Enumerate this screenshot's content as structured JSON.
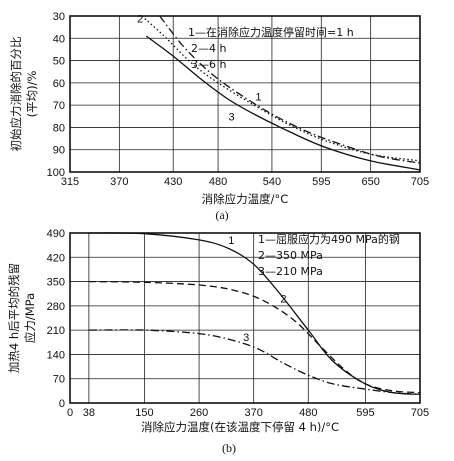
{
  "chart_data": [
    {
      "type": "line",
      "caption": "(a)",
      "xlabel": "消除应力温度/°C",
      "ylabel_lines": [
        "初始应力消除的百分比",
        "(平均)/%"
      ],
      "x_ticks": [
        315,
        370,
        430,
        480,
        540,
        595,
        650,
        705
      ],
      "y_ticks": [
        30,
        40,
        50,
        60,
        70,
        80,
        90,
        100
      ],
      "xlim": [
        315,
        705
      ],
      "ylim": [
        30,
        100
      ],
      "y_inverted": true,
      "grid": true,
      "annotation": {
        "line1": "1—在消除应力温度停留时间=1 h",
        "line2": "2—4 h",
        "line3": "3—6 h"
      },
      "series": [
        {
          "name": "1",
          "style": "dash-dot",
          "x": [
            415,
            440,
            470,
            500,
            540,
            580,
            620,
            660,
            705
          ],
          "y": [
            30,
            43,
            55,
            64,
            74,
            82,
            88,
            93,
            96
          ]
        },
        {
          "name": "2",
          "style": "dotted",
          "x": [
            395,
            420,
            450,
            480,
            520,
            560,
            600,
            650,
            705
          ],
          "y": [
            30,
            39,
            51,
            60,
            70,
            79,
            86,
            92,
            95
          ]
        },
        {
          "name": "3",
          "style": "solid",
          "x": [
            400,
            430,
            460,
            490,
            520,
            560,
            600,
            650,
            705
          ],
          "y": [
            39,
            48,
            58,
            67,
            74,
            82,
            89,
            95,
            99
          ]
        }
      ],
      "curve_labels": [
        {
          "text": "2",
          "x": 393,
          "y": 33
        },
        {
          "text": "1",
          "x": 525,
          "y": 68
        },
        {
          "text": "3",
          "x": 495,
          "y": 77
        }
      ]
    },
    {
      "type": "line",
      "caption": "(b)",
      "xlabel": "消除应力温度(在该温度下停留 4 h)/°C",
      "ylabel_lines": [
        "加热4 h后平均的残留",
        "应力/MPa"
      ],
      "x_ticks": [
        0,
        38,
        150,
        260,
        370,
        480,
        595,
        705
      ],
      "y_ticks": [
        490,
        420,
        350,
        280,
        210,
        140,
        70,
        0
      ],
      "xlim": [
        0,
        705
      ],
      "ylim": [
        0,
        490
      ],
      "grid": true,
      "annotation": {
        "line1": "1—屈服应力为490 MPa的钢",
        "line2": "2—350 MPa",
        "line3": "3—210 MPa"
      },
      "series": [
        {
          "name": "1",
          "style": "solid",
          "x": [
            38,
            150,
            260,
            320,
            370,
            420,
            480,
            530,
            595,
            650,
            705
          ],
          "y": [
            490,
            488,
            470,
            445,
            400,
            320,
            210,
            120,
            55,
            30,
            25
          ]
        },
        {
          "name": "2",
          "style": "dashed",
          "x": [
            38,
            150,
            260,
            330,
            390,
            450,
            500,
            550,
            595,
            650,
            705
          ],
          "y": [
            350,
            348,
            340,
            325,
            295,
            240,
            170,
            100,
            55,
            35,
            30
          ]
        },
        {
          "name": "3",
          "style": "dash-dot",
          "x": [
            38,
            150,
            260,
            330,
            380,
            430,
            480,
            530,
            595,
            650,
            705
          ],
          "y": [
            210,
            210,
            200,
            180,
            155,
            115,
            80,
            55,
            40,
            30,
            25
          ]
        }
      ],
      "curve_labels": [
        {
          "text": "1",
          "x": 325,
          "y": 458
        },
        {
          "text": "2",
          "x": 430,
          "y": 290
        },
        {
          "text": "3",
          "x": 355,
          "y": 178
        }
      ]
    }
  ]
}
